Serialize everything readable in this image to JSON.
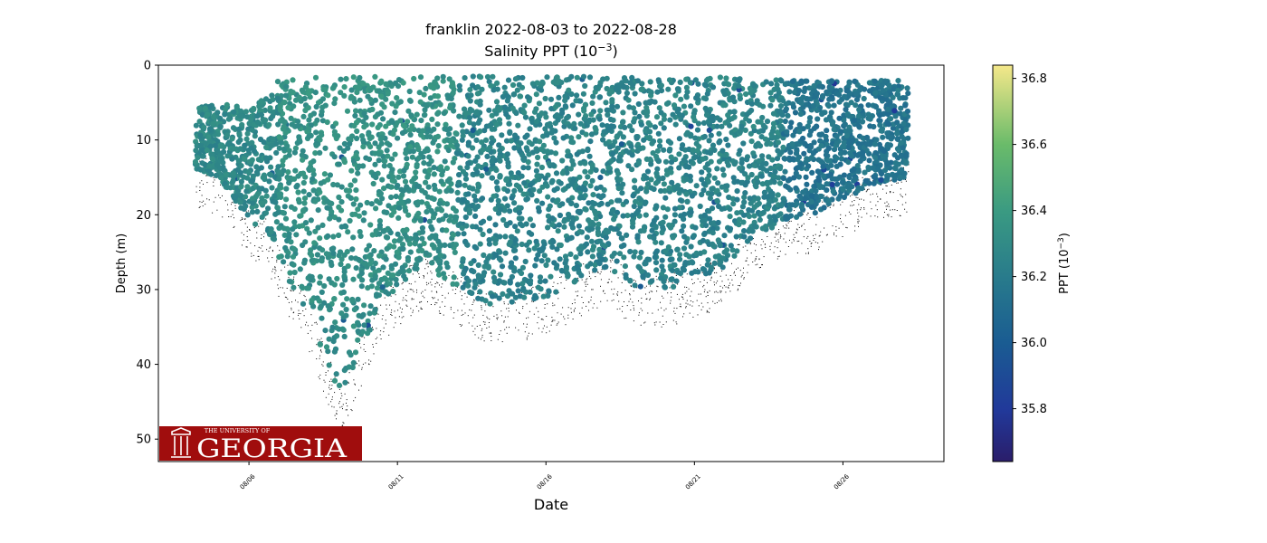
{
  "chart_data": {
    "type": "scatter",
    "title": "franklin 2022-08-03 to 2022-08-28",
    "subtitle_base": "Salinity PPT (10",
    "subtitle_exp": "−3",
    "subtitle_end": ")",
    "xlabel": "Date",
    "ylabel": "Depth (m)",
    "colorbar_label_base": "PPT (10",
    "colorbar_label_exp": "−3",
    "colorbar_label_end": ")",
    "x_range_days": [
      2.95,
      29.4
    ],
    "y_range": [
      53,
      0
    ],
    "y_ticks": [
      0,
      10,
      20,
      30,
      40,
      50
    ],
    "x_ticks": [
      {
        "day": 6,
        "label": "08/06"
      },
      {
        "day": 11,
        "label": "08/11"
      },
      {
        "day": 16,
        "label": "08/16"
      },
      {
        "day": 21,
        "label": "08/21"
      },
      {
        "day": 26,
        "label": "08/26"
      }
    ],
    "color_range": [
      35.64,
      36.84
    ],
    "colorbar_ticks": [
      35.8,
      36.0,
      36.2,
      36.4,
      36.6,
      36.8
    ],
    "colormap": "haline",
    "grid": false,
    "profile_envelope": [
      {
        "day": 4.2,
        "top": 5.5,
        "bottom": 14
      },
      {
        "day": 5.0,
        "top": 5.3,
        "bottom": 15
      },
      {
        "day": 5.5,
        "top": 5.2,
        "bottom": 18
      },
      {
        "day": 6.0,
        "top": 5.0,
        "bottom": 21
      },
      {
        "day": 6.5,
        "top": 4.5,
        "bottom": 22
      },
      {
        "day": 7.0,
        "top": 2.0,
        "bottom": 26
      },
      {
        "day": 7.5,
        "top": 1.5,
        "bottom": 30
      },
      {
        "day": 8.0,
        "top": 1.5,
        "bottom": 33
      },
      {
        "day": 8.5,
        "top": 1.5,
        "bottom": 39
      },
      {
        "day": 9.0,
        "top": 1.5,
        "bottom": 44
      },
      {
        "day": 9.5,
        "top": 1.5,
        "bottom": 41
      },
      {
        "day": 10.0,
        "top": 1.5,
        "bottom": 36
      },
      {
        "day": 10.5,
        "top": 1.5,
        "bottom": 32
      },
      {
        "day": 11.0,
        "top": 1.5,
        "bottom": 30
      },
      {
        "day": 12.0,
        "top": 1.5,
        "bottom": 27
      },
      {
        "day": 13.0,
        "top": 1.5,
        "bottom": 30
      },
      {
        "day": 14.0,
        "top": 1.5,
        "bottom": 32
      },
      {
        "day": 15.0,
        "top": 1.5,
        "bottom": 32
      },
      {
        "day": 16.0,
        "top": 1.5,
        "bottom": 31
      },
      {
        "day": 17.0,
        "top": 1.5,
        "bottom": 29
      },
      {
        "day": 18.0,
        "top": 1.5,
        "bottom": 27
      },
      {
        "day": 19.0,
        "top": 1.5,
        "bottom": 30
      },
      {
        "day": 20.0,
        "top": 1.5,
        "bottom": 30
      },
      {
        "day": 21.0,
        "top": 1.5,
        "bottom": 29
      },
      {
        "day": 22.0,
        "top": 1.5,
        "bottom": 27
      },
      {
        "day": 23.0,
        "top": 1.8,
        "bottom": 23
      },
      {
        "day": 24.0,
        "top": 2.0,
        "bottom": 21
      },
      {
        "day": 25.0,
        "top": 2.0,
        "bottom": 20
      },
      {
        "day": 26.0,
        "top": 2.0,
        "bottom": 18
      },
      {
        "day": 27.0,
        "top": 2.0,
        "bottom": 16
      },
      {
        "day": 28.2,
        "top": 2.0,
        "bottom": 15
      }
    ],
    "mean_salinity_by_period": [
      {
        "from_day": 4.2,
        "to_day": 7.0,
        "salinity": 36.28
      },
      {
        "from_day": 7.0,
        "to_day": 13.0,
        "salinity": 36.33
      },
      {
        "from_day": 13.0,
        "to_day": 24.0,
        "salinity": 36.25
      },
      {
        "from_day": 24.0,
        "to_day": 28.2,
        "salinity": 36.15
      }
    ]
  },
  "logo": {
    "top_text": "THE UNIVERSITY OF",
    "main_text": "GEORGIA",
    "bg_color": "#a00d0d"
  }
}
